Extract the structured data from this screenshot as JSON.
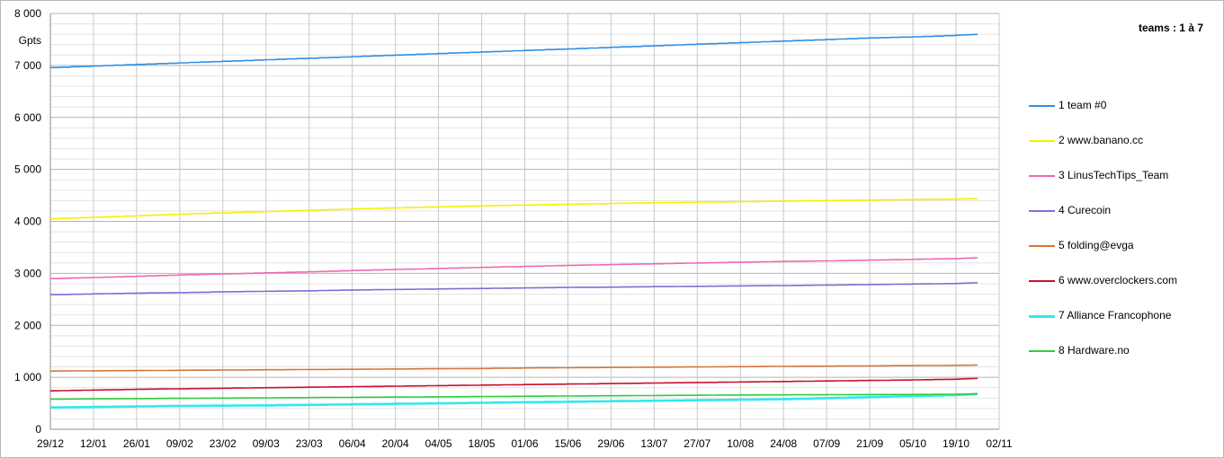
{
  "chart_data": {
    "type": "line",
    "title": "teams : 1 à 7",
    "ylabel": "Gpts",
    "xlabel": "",
    "ylim": [
      0,
      8000
    ],
    "yticks": [
      0,
      1000,
      2000,
      3000,
      4000,
      5000,
      6000,
      7000,
      8000
    ],
    "ytick_labels": [
      "0",
      "1 000",
      "2 000",
      "3 000",
      "4 000",
      "5 000",
      "6 000",
      "7 000",
      "8 000"
    ],
    "xlim": [
      "29/12",
      "02/11"
    ],
    "xticks": [
      "29/12",
      "12/01",
      "26/01",
      "09/02",
      "23/02",
      "09/03",
      "23/03",
      "06/04",
      "20/04",
      "04/05",
      "18/05",
      "01/06",
      "15/06",
      "29/06",
      "13/07",
      "27/07",
      "10/08",
      "24/08",
      "07/09",
      "21/09",
      "05/10",
      "19/10",
      "02/11"
    ],
    "x": [
      "29/12",
      "12/01",
      "26/01",
      "09/02",
      "23/02",
      "09/03",
      "23/03",
      "06/04",
      "20/04",
      "04/05",
      "18/05",
      "01/06",
      "15/06",
      "29/06",
      "13/07",
      "27/07",
      "10/08",
      "24/08",
      "07/09",
      "21/09",
      "05/10",
      "19/10",
      "28/10"
    ],
    "grid": true,
    "legend_position": "right",
    "series": [
      {
        "name": "1 team #0",
        "color": "#2f8fe4",
        "values": [
          6960,
          6990,
          7020,
          7050,
          7080,
          7110,
          7140,
          7170,
          7200,
          7230,
          7260,
          7290,
          7320,
          7350,
          7380,
          7410,
          7440,
          7470,
          7500,
          7530,
          7550,
          7580,
          7600
        ]
      },
      {
        "name": "2 www.banano.cc",
        "color": "#f5f000",
        "values": [
          4050,
          4080,
          4110,
          4140,
          4165,
          4190,
          4215,
          4240,
          4260,
          4280,
          4300,
          4315,
          4330,
          4345,
          4360,
          4370,
          4380,
          4390,
          4400,
          4410,
          4420,
          4430,
          4440
        ]
      },
      {
        "name": "3 LinusTechTips_Team",
        "color": "#ef69b1",
        "values": [
          2900,
          2920,
          2945,
          2970,
          2990,
          3010,
          3030,
          3055,
          3075,
          3095,
          3115,
          3135,
          3155,
          3170,
          3185,
          3200,
          3215,
          3230,
          3240,
          3255,
          3270,
          3285,
          3300
        ]
      },
      {
        "name": "4 Curecoin",
        "color": "#7b6fd6",
        "values": [
          2590,
          2605,
          2620,
          2630,
          2645,
          2655,
          2665,
          2680,
          2690,
          2700,
          2710,
          2720,
          2730,
          2735,
          2745,
          2750,
          2760,
          2765,
          2775,
          2785,
          2795,
          2805,
          2820
        ]
      },
      {
        "name": "5 folding@evga",
        "color": "#d5773a",
        "values": [
          1120,
          1125,
          1130,
          1135,
          1140,
          1145,
          1150,
          1155,
          1160,
          1165,
          1170,
          1180,
          1185,
          1190,
          1195,
          1200,
          1205,
          1210,
          1215,
          1220,
          1225,
          1230,
          1235
        ]
      },
      {
        "name": "6 www.overclockers.com",
        "color": "#c8102e",
        "values": [
          740,
          755,
          770,
          780,
          790,
          800,
          810,
          820,
          830,
          840,
          850,
          860,
          870,
          880,
          890,
          900,
          910,
          920,
          930,
          940,
          950,
          965,
          980
        ]
      },
      {
        "name": "7 Alliance Francophone",
        "color": "#2ee8f0",
        "values": [
          420,
          430,
          440,
          450,
          455,
          460,
          470,
          480,
          490,
          500,
          510,
          520,
          530,
          540,
          550,
          560,
          570,
          580,
          600,
          620,
          640,
          660,
          680
        ]
      },
      {
        "name": "8 Hardware.no",
        "color": "#2ecc40",
        "values": [
          580,
          585,
          590,
          595,
          600,
          605,
          610,
          615,
          620,
          625,
          630,
          635,
          640,
          645,
          650,
          655,
          660,
          662,
          665,
          668,
          670,
          675,
          680
        ]
      }
    ]
  }
}
